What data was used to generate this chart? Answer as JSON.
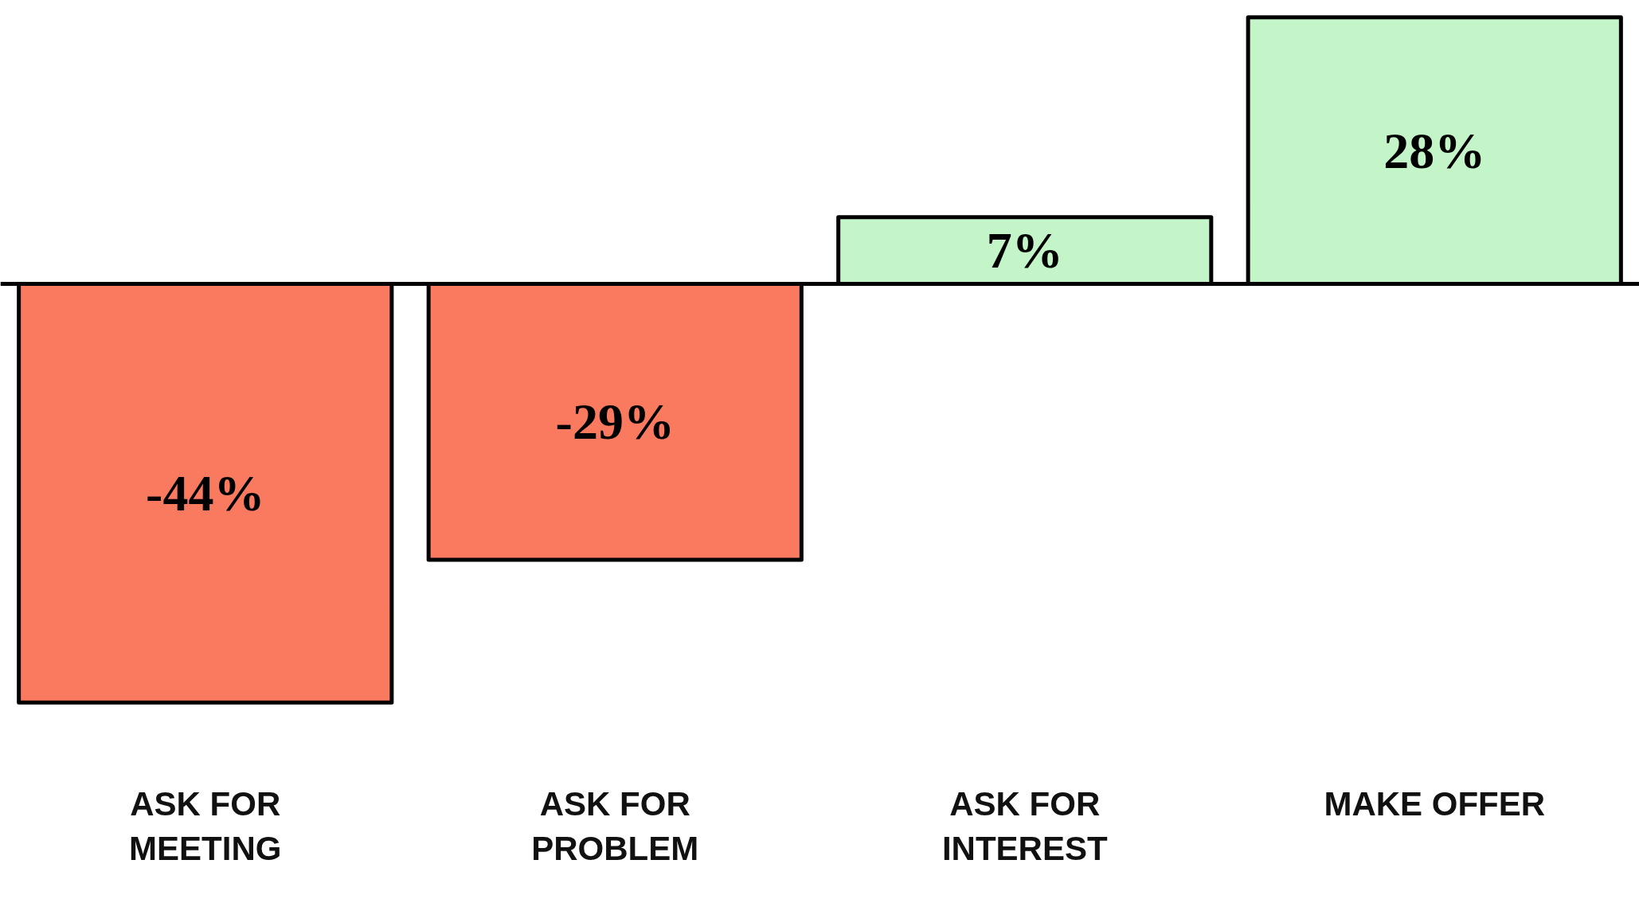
{
  "chart_data": {
    "type": "bar",
    "categories": [
      "ASK FOR\nMEETING",
      "ASK FOR\nPROBLEM",
      "ASK FOR\nINTEREST",
      "MAKE OFFER"
    ],
    "values": [
      -44,
      -29,
      7,
      28
    ],
    "colors": [
      "#fa7a60",
      "#fa7a60",
      "#c3f5c8",
      "#c3f5c8"
    ],
    "value_labels": [
      "-44%",
      "-29%",
      "7%",
      "28%"
    ]
  }
}
